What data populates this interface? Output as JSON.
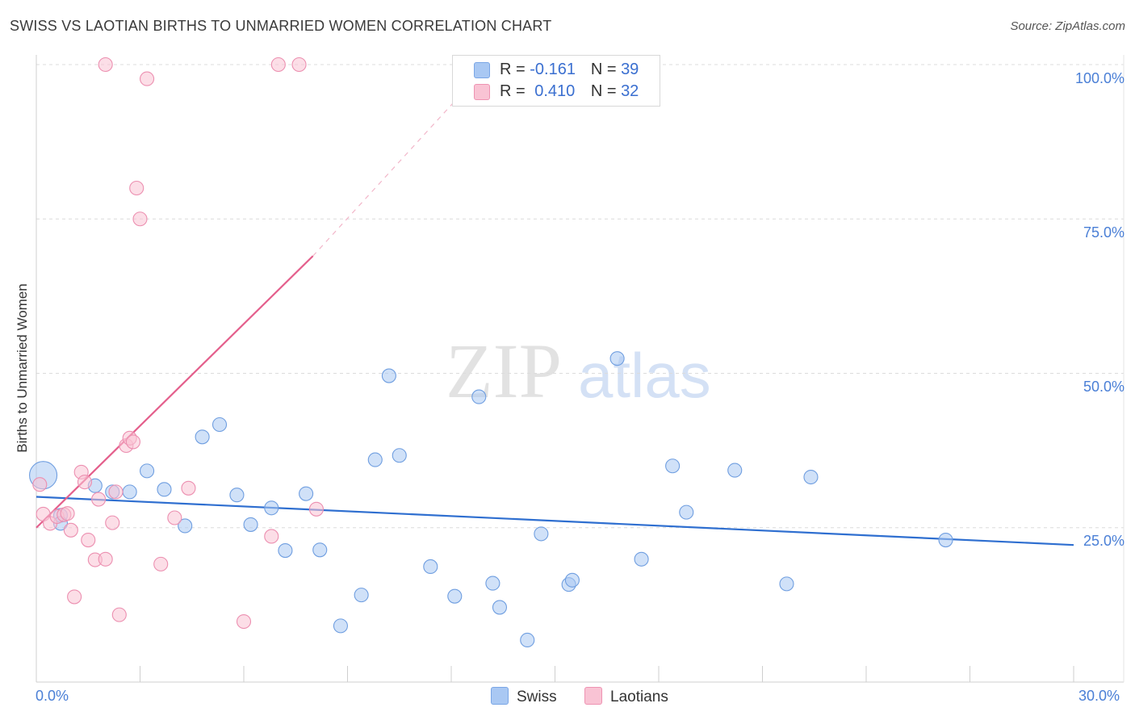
{
  "header": {
    "title": "SWISS VS LAOTIAN BIRTHS TO UNMARRIED WOMEN CORRELATION CHART",
    "source": "Source: ZipAtlas.com"
  },
  "watermark": {
    "zip": "ZIP",
    "atlas": "atlas"
  },
  "legend": {
    "r_label": "R =",
    "n_label": "N =",
    "rows": [
      {
        "name": "Swiss",
        "r": "-0.161",
        "n": "39",
        "color": "#a9c8f3",
        "border": "#7aa6e6"
      },
      {
        "name": "Laotians",
        "r": "0.410",
        "n": "32",
        "color": "#f9c3d4",
        "border": "#ee93b2"
      }
    ]
  },
  "chart_data": {
    "type": "scatter",
    "title": "SWISS VS LAOTIAN BIRTHS TO UNMARRIED WOMEN CORRELATION CHART",
    "xlabel": "",
    "ylabel": "Births to Unmarried Women",
    "xlim": [
      0,
      30
    ],
    "ylim": [
      0,
      100
    ],
    "x_tick_labels": [
      "0.0%",
      "30.0%"
    ],
    "y_ticks": [
      25,
      50,
      75,
      100
    ],
    "y_tick_labels": [
      "25.0%",
      "50.0%",
      "75.0%",
      "100.0%"
    ],
    "grid": true,
    "series": [
      {
        "name": "Swiss",
        "color": "#a9c8f3",
        "edge": "#6f9ee0",
        "trend_color": "#2f6fd0",
        "trend": {
          "x0": 0,
          "y0": 30.0,
          "x1": 30,
          "y1": 22.2
        },
        "points": [
          {
            "x": 0.2,
            "y": 33.5,
            "big": true
          },
          {
            "x": 0.7,
            "y": 27.0
          },
          {
            "x": 0.7,
            "y": 25.7
          },
          {
            "x": 1.7,
            "y": 31.8
          },
          {
            "x": 2.2,
            "y": 30.8
          },
          {
            "x": 2.7,
            "y": 30.8
          },
          {
            "x": 3.2,
            "y": 34.2
          },
          {
            "x": 3.7,
            "y": 31.2
          },
          {
            "x": 4.3,
            "y": 25.3
          },
          {
            "x": 4.8,
            "y": 39.7
          },
          {
            "x": 5.3,
            "y": 41.7
          },
          {
            "x": 5.8,
            "y": 30.3
          },
          {
            "x": 6.2,
            "y": 25.5
          },
          {
            "x": 6.8,
            "y": 28.2
          },
          {
            "x": 7.2,
            "y": 21.3
          },
          {
            "x": 7.8,
            "y": 30.5
          },
          {
            "x": 8.2,
            "y": 21.4
          },
          {
            "x": 8.8,
            "y": 9.1
          },
          {
            "x": 9.4,
            "y": 14.1
          },
          {
            "x": 9.8,
            "y": 36.0
          },
          {
            "x": 10.2,
            "y": 49.6
          },
          {
            "x": 10.5,
            "y": 36.7
          },
          {
            "x": 11.4,
            "y": 18.7
          },
          {
            "x": 12.1,
            "y": 13.9
          },
          {
            "x": 12.8,
            "y": 46.2
          },
          {
            "x": 13.2,
            "y": 16.0
          },
          {
            "x": 13.4,
            "y": 12.1
          },
          {
            "x": 14.2,
            "y": 6.8
          },
          {
            "x": 14.6,
            "y": 24.0
          },
          {
            "x": 15.4,
            "y": 15.8
          },
          {
            "x": 15.5,
            "y": 16.5
          },
          {
            "x": 16.8,
            "y": 52.4
          },
          {
            "x": 17.5,
            "y": 19.9
          },
          {
            "x": 18.4,
            "y": 35.0
          },
          {
            "x": 18.8,
            "y": 27.5
          },
          {
            "x": 20.2,
            "y": 34.3
          },
          {
            "x": 21.7,
            "y": 15.9
          },
          {
            "x": 22.4,
            "y": 33.2
          },
          {
            "x": 26.3,
            "y": 23.0
          }
        ]
      },
      {
        "name": "Laotians",
        "color": "#f9c3d4",
        "edge": "#ec8fb0",
        "trend_color": "#e45f8c",
        "trend": {
          "x0": 0,
          "y0": 25.0,
          "x1": 8.0,
          "y1": 69.0,
          "dash_x1": 12.5,
          "dash_y1": 96.5
        },
        "points": [
          {
            "x": 0.1,
            "y": 32.0
          },
          {
            "x": 0.2,
            "y": 27.2
          },
          {
            "x": 0.4,
            "y": 25.7
          },
          {
            "x": 0.6,
            "y": 26.8
          },
          {
            "x": 0.8,
            "y": 27.1
          },
          {
            "x": 0.9,
            "y": 27.3
          },
          {
            "x": 1.0,
            "y": 24.6
          },
          {
            "x": 1.1,
            "y": 13.8
          },
          {
            "x": 1.3,
            "y": 34.0
          },
          {
            "x": 1.4,
            "y": 32.4
          },
          {
            "x": 1.5,
            "y": 23.0
          },
          {
            "x": 1.7,
            "y": 19.8
          },
          {
            "x": 1.8,
            "y": 29.6
          },
          {
            "x": 2.0,
            "y": 19.9
          },
          {
            "x": 2.2,
            "y": 25.8
          },
          {
            "x": 2.3,
            "y": 30.8
          },
          {
            "x": 2.4,
            "y": 10.9
          },
          {
            "x": 2.6,
            "y": 38.3
          },
          {
            "x": 2.7,
            "y": 39.5
          },
          {
            "x": 2.8,
            "y": 38.9
          },
          {
            "x": 2.9,
            "y": 80.0
          },
          {
            "x": 3.0,
            "y": 75.0
          },
          {
            "x": 3.2,
            "y": 97.7
          },
          {
            "x": 2.0,
            "y": 100.0
          },
          {
            "x": 3.6,
            "y": 19.1
          },
          {
            "x": 4.0,
            "y": 26.6
          },
          {
            "x": 4.4,
            "y": 31.4
          },
          {
            "x": 6.0,
            "y": 9.8
          },
          {
            "x": 6.8,
            "y": 23.6
          },
          {
            "x": 7.0,
            "y": 100.0
          },
          {
            "x": 7.6,
            "y": 100.0
          },
          {
            "x": 8.1,
            "y": 28.0
          }
        ]
      }
    ]
  }
}
